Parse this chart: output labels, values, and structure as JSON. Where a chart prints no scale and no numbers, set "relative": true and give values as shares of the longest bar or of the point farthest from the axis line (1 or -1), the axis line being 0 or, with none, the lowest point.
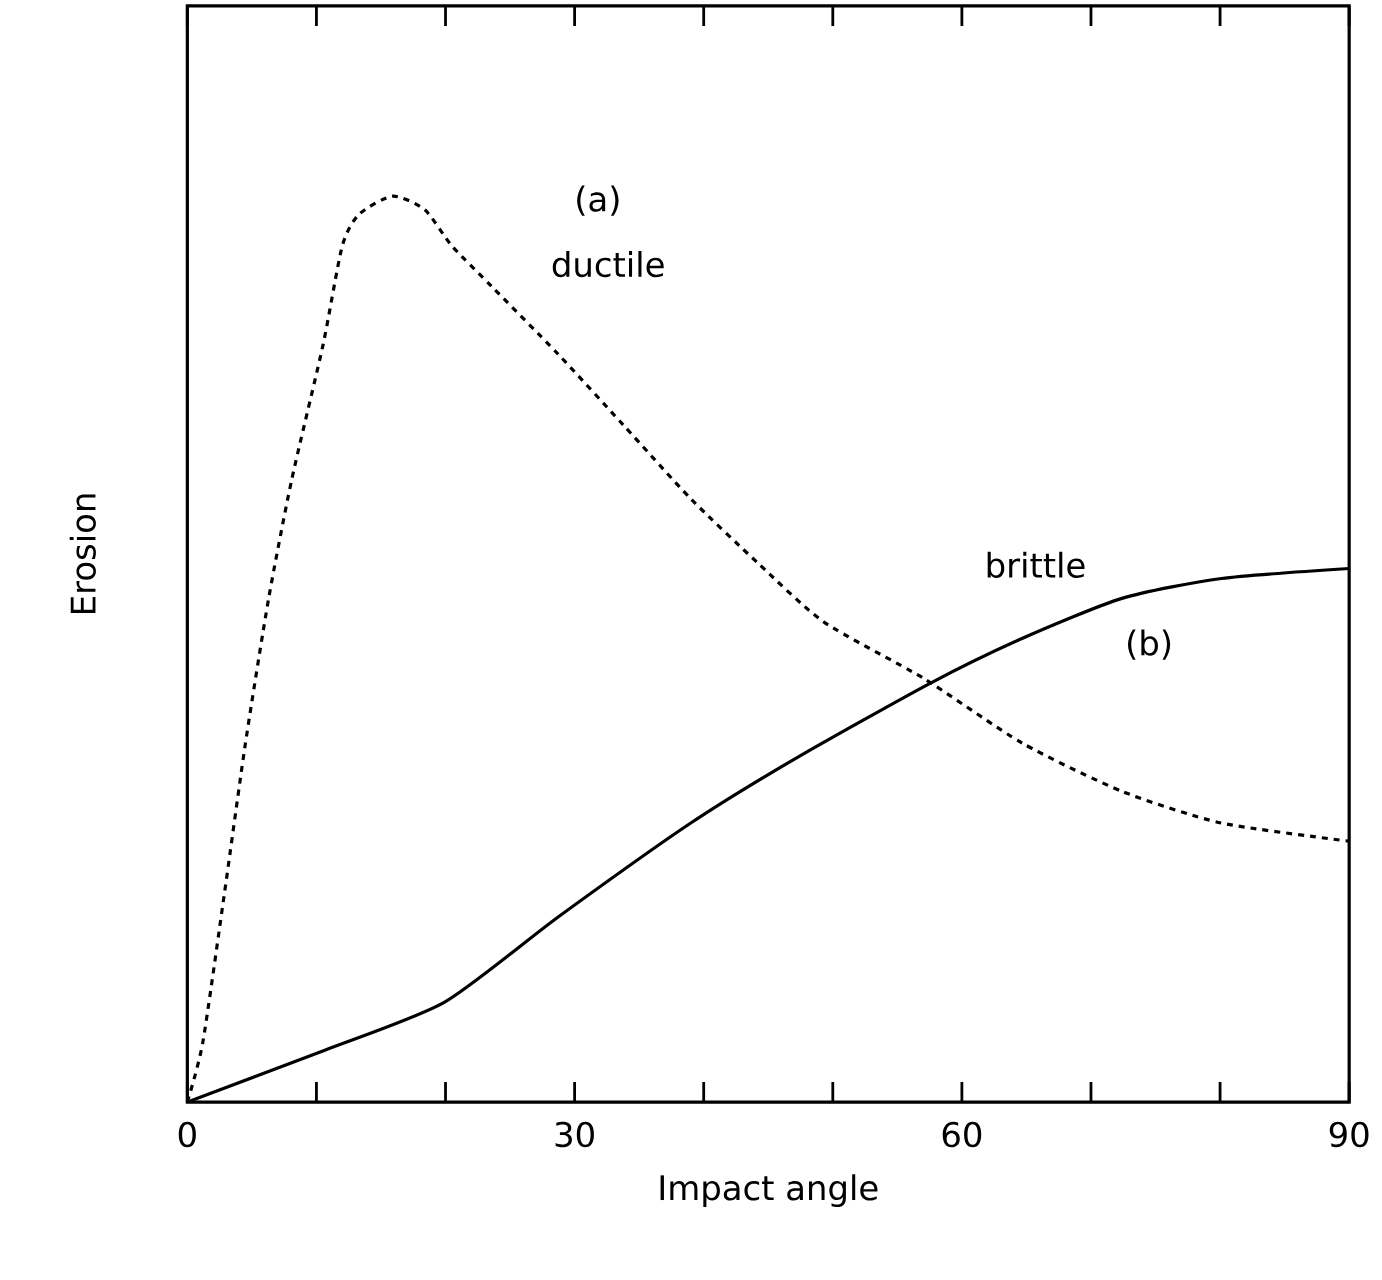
{
  "chart_data": {
    "type": "line",
    "relative": true,
    "xlabel": "Impact angle",
    "ylabel": "Erosion",
    "xlim": [
      0,
      90
    ],
    "xticks": [
      0,
      {
        "value": 10,
        "label": null
      },
      {
        "value": 20,
        "label": null
      },
      30,
      {
        "value": 40,
        "label": null
      },
      {
        "value": 50,
        "label": null
      },
      60,
      {
        "value": 70,
        "label": null
      },
      {
        "value": 80,
        "label": null
      },
      90
    ],
    "annotations": [
      "(a)",
      "(b)"
    ],
    "series": [
      {
        "name": "ductile",
        "color": "#000000",
        "line_style": "dashed",
        "x": [
          0,
          1.2,
          2.9,
          4.5,
          6.3,
          8.1,
          10.5,
          12.0,
          13.3,
          15.9,
          18.4,
          20.5,
          23.6,
          28.7,
          33.8,
          39.0,
          44.2,
          49.3,
          57.0,
          64.7,
          72.4,
          80.1,
          90
        ],
        "values": [
          0,
          0.066,
          0.233,
          0.396,
          0.556,
          0.688,
          0.835,
          0.945,
          0.98,
          1.0,
          0.985,
          0.945,
          0.9,
          0.826,
          0.747,
          0.666,
          0.595,
          0.53,
          0.468,
          0.396,
          0.343,
          0.308,
          0.288
        ]
      },
      {
        "name": "brittle",
        "color": "#000000",
        "line_style": "solid",
        "x": [
          0,
          10.6,
          19.9,
          28.7,
          39.0,
          47.2,
          57.5,
          64.7,
          72.4,
          80.1,
          90
        ],
        "values": [
          0,
          0.057,
          0.11,
          0.204,
          0.308,
          0.38,
          0.462,
          0.512,
          0.556,
          0.578,
          0.589
        ]
      }
    ]
  }
}
